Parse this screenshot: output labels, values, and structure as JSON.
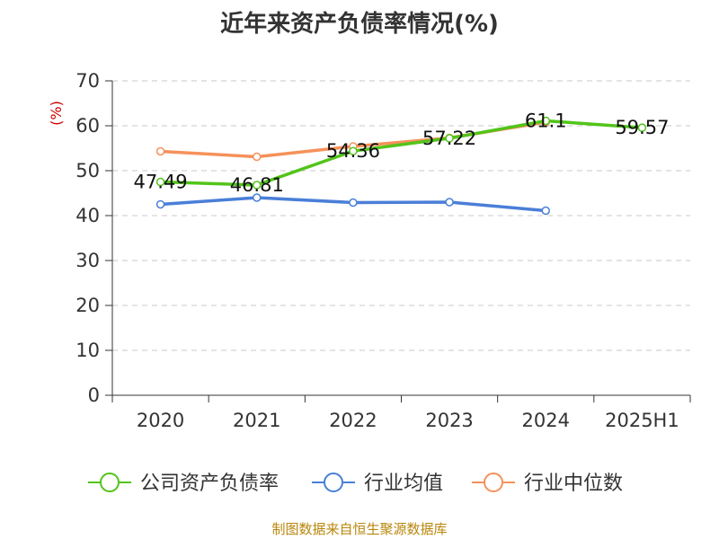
{
  "title": "近年来资产负债率情况(%)",
  "source": "制图数据来自恒生聚源数据库",
  "chart_data": {
    "type": "line",
    "title": "近年来资产负债率情况(%)",
    "ylabel": "(%)",
    "xlabel": "",
    "categories": [
      "2020",
      "2021",
      "2022",
      "2023",
      "2024",
      "2025H1"
    ],
    "ylim": [
      0,
      70
    ],
    "yticks": [
      0,
      10,
      20,
      30,
      40,
      50,
      60,
      70
    ],
    "grid": true,
    "legend_position": "bottom",
    "series": [
      {
        "name": "公司资产负债率",
        "color": "#52c41a",
        "values": [
          47.49,
          46.81,
          54.36,
          57.22,
          61.1,
          59.57
        ],
        "labels": [
          "47.49",
          "46.81",
          "54.36",
          "57.22",
          "61.1",
          "59.57"
        ]
      },
      {
        "name": "行业均值",
        "color": "#4a7fd8",
        "values": [
          42.5,
          44.0,
          42.9,
          43.0,
          41.1,
          null
        ]
      },
      {
        "name": "行业中位数",
        "color": "#f5915a",
        "values": [
          54.3,
          53.1,
          55.4,
          57.3,
          60.8,
          null
        ]
      }
    ]
  }
}
